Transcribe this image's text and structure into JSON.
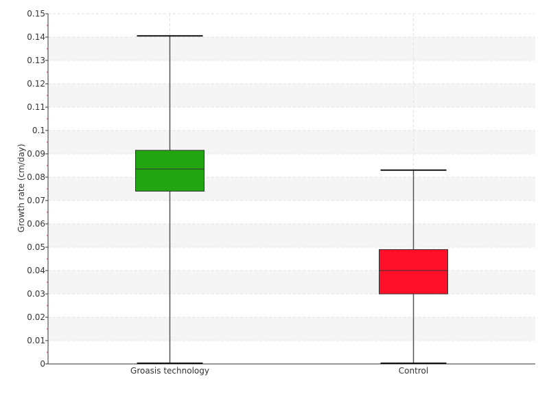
{
  "chart_data": {
    "type": "boxplot",
    "title": "",
    "xlabel": "",
    "ylabel": "Growth rate (cm/day)",
    "ylim": [
      0,
      0.15
    ],
    "yticks": [
      "0",
      "0.01",
      "0.02",
      "0.03",
      "0.04",
      "0.05",
      "0.06",
      "0.07",
      "0.08",
      "0.09",
      "0.1",
      "0.11",
      "0.12",
      "0.13",
      "0.14",
      "0.15"
    ],
    "grid": true,
    "categories": [
      "Groasis technology",
      "Control"
    ],
    "boxes": [
      {
        "category": "Groasis technology",
        "min": 0.0,
        "q1": 0.074,
        "median": 0.0835,
        "q3": 0.0915,
        "max": 0.1405,
        "color": "#22a511"
      },
      {
        "category": "Control",
        "min": 0.0,
        "q1": 0.03,
        "median": 0.04,
        "q3": 0.049,
        "max": 0.083,
        "color": "#ff1028"
      }
    ]
  }
}
